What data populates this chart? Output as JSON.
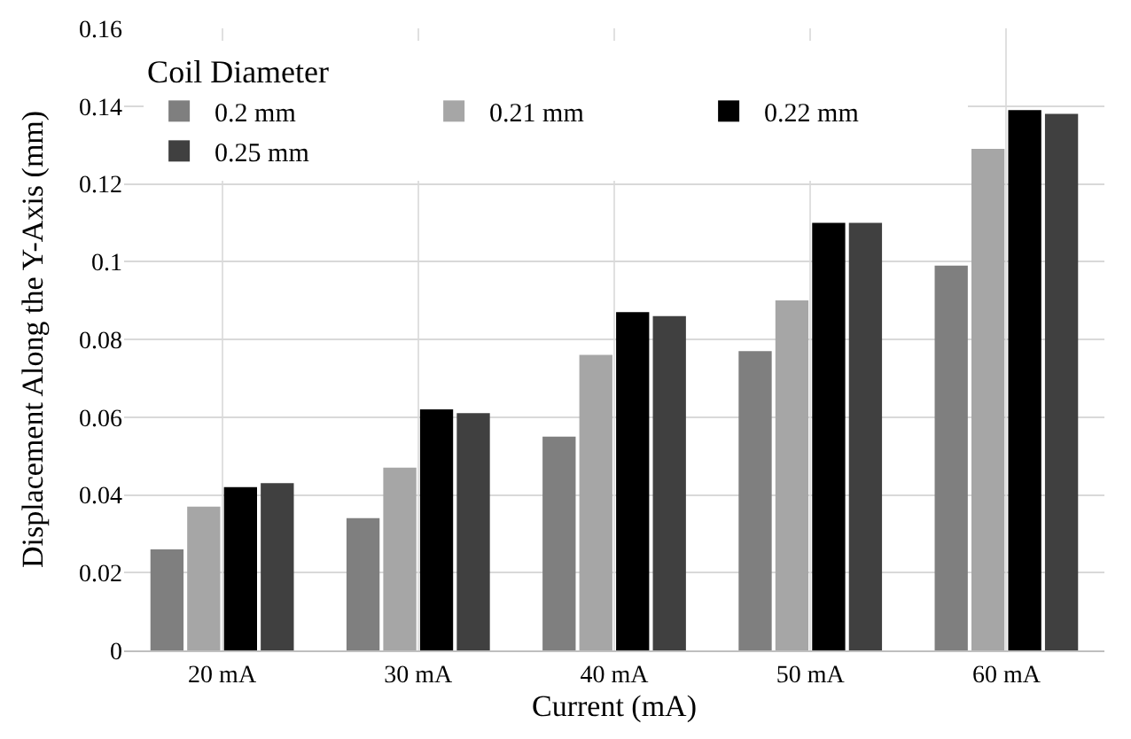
{
  "chart_data": {
    "type": "bar",
    "xlabel": "Current (mA)",
    "ylabel": "Displacement Along the Y-Axis (mm)",
    "legend_title": "Coil Diameter",
    "categories": [
      "20 mA",
      "30 mA",
      "40 mA",
      "50 mA",
      "60 mA"
    ],
    "series": [
      {
        "name": "0.2 mm",
        "color": "#7f7f7f",
        "values": [
          0.026,
          0.034,
          0.055,
          0.077,
          0.099
        ]
      },
      {
        "name": "0.21 mm",
        "color": "#a6a6a6",
        "values": [
          0.037,
          0.047,
          0.076,
          0.09,
          0.129
        ]
      },
      {
        "name": "0.22 mm",
        "color": "#000000",
        "values": [
          0.042,
          0.062,
          0.087,
          0.11,
          0.139
        ]
      },
      {
        "name": "0.25 mm",
        "color": "#404040",
        "values": [
          0.043,
          0.061,
          0.086,
          0.11,
          0.138
        ]
      }
    ],
    "ylim": [
      0,
      0.16
    ],
    "yticks": [
      0,
      0.02,
      0.04,
      0.06,
      0.08,
      0.1,
      0.12,
      0.14,
      0.16
    ],
    "grid": true,
    "legend": "top left"
  }
}
